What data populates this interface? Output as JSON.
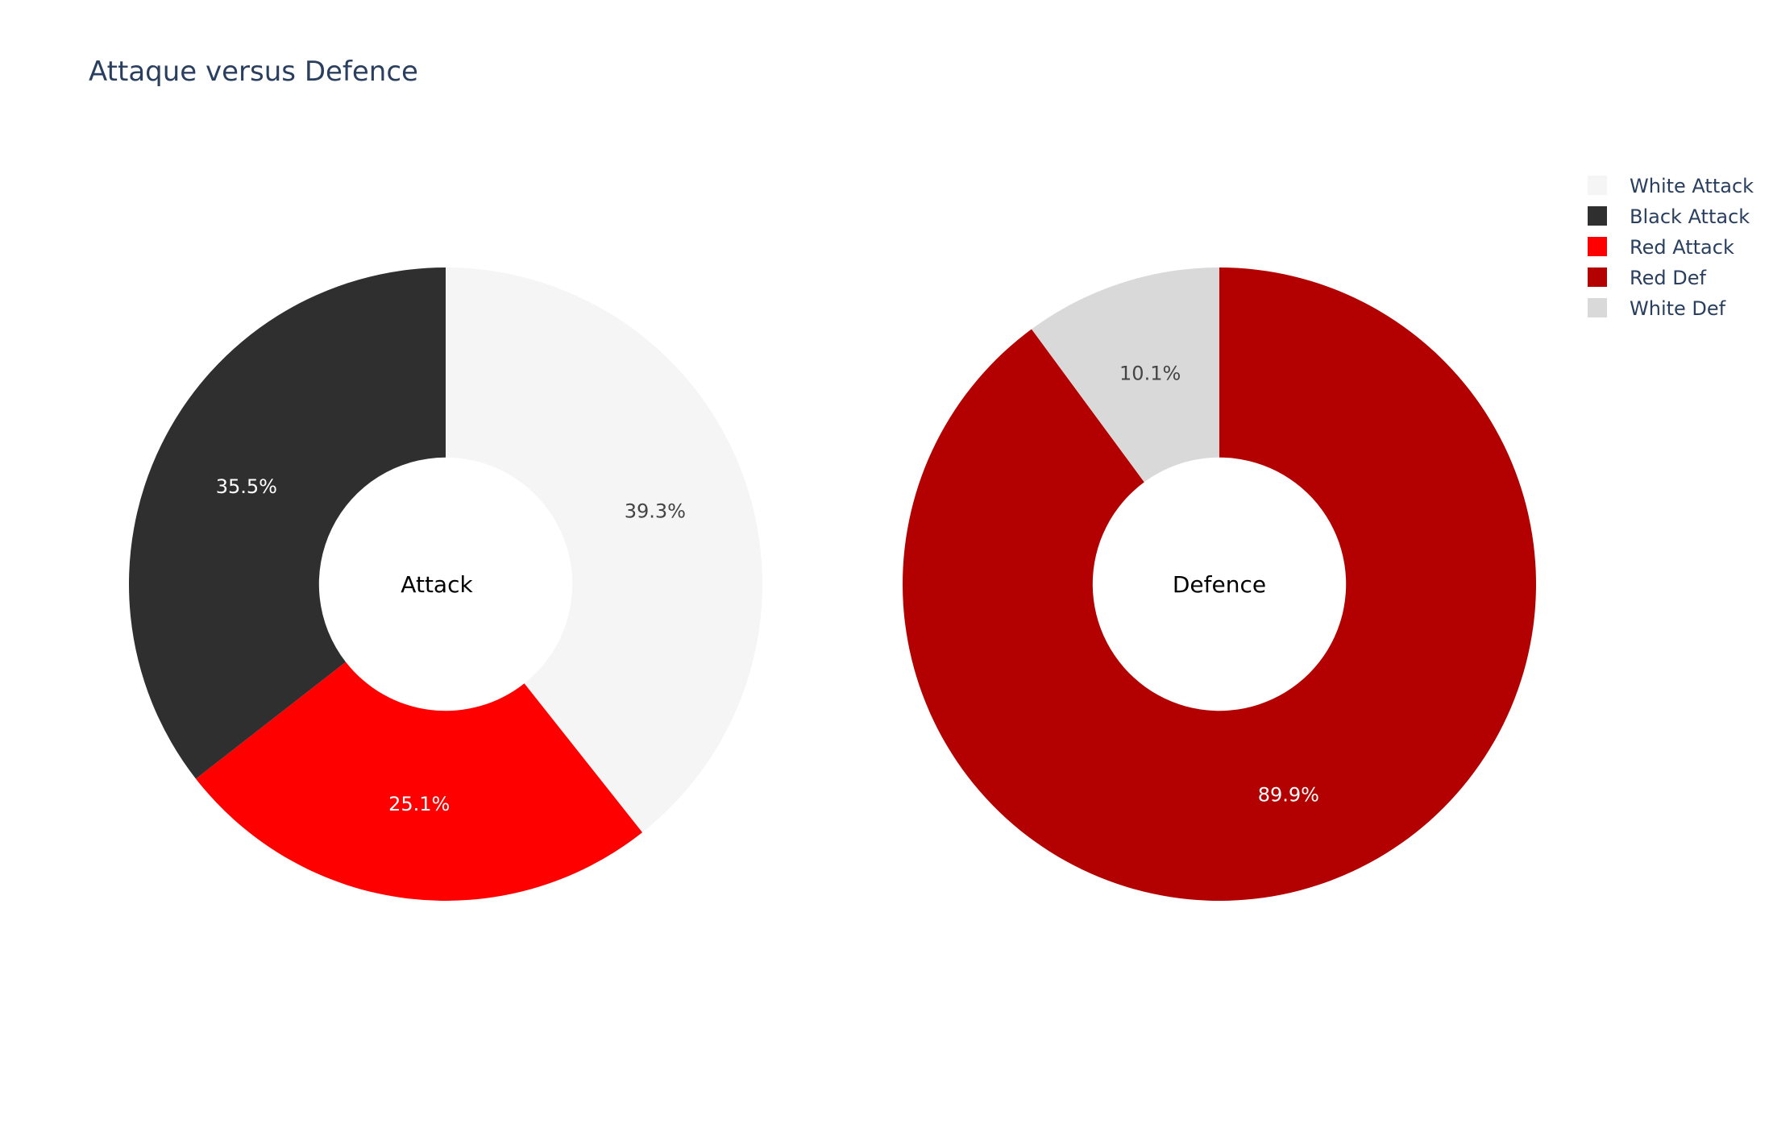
{
  "chart_data": {
    "type": "pie",
    "title": "Attaque versus Defence",
    "legend_position": "top-right",
    "legend": [
      {
        "name": "White Attack",
        "color": "#f5f5f5"
      },
      {
        "name": "Black Attack",
        "color": "#2f2f2f"
      },
      {
        "name": "Red Attack",
        "color": "#ff0000"
      },
      {
        "name": "Red Def",
        "color": "#b30000"
      },
      {
        "name": "White Def",
        "color": "#d9d9d9"
      }
    ],
    "charts": [
      {
        "center_label": "Attack",
        "hole": 0.4,
        "slices": [
          {
            "name": "White Attack",
            "percent": 39.3,
            "label": "39.3%",
            "color": "#f5f5f5",
            "label_color": "#444444"
          },
          {
            "name": "Red Attack",
            "percent": 25.1,
            "label": "25.1%",
            "color": "#ff0000",
            "label_color": "#ffffff"
          },
          {
            "name": "Black Attack",
            "percent": 35.5,
            "label": "35.5%",
            "color": "#2f2f2f",
            "label_color": "#ffffff"
          }
        ]
      },
      {
        "center_label": "Defence",
        "hole": 0.4,
        "slices": [
          {
            "name": "Red Def",
            "percent": 89.9,
            "label": "89.9%",
            "color": "#b30000",
            "label_color": "#ffffff"
          },
          {
            "name": "White Def",
            "percent": 10.1,
            "label": "10.1%",
            "color": "#d9d9d9",
            "label_color": "#444444"
          }
        ]
      }
    ]
  }
}
